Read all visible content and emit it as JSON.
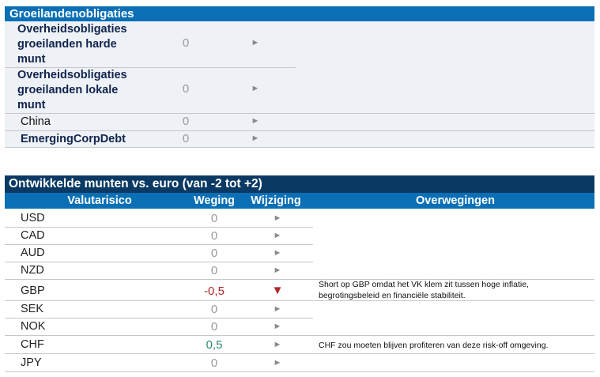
{
  "top": {
    "header": "Groeilandenobligaties",
    "rows": [
      {
        "label_lines": [
          "Overheidsobligaties",
          "groeilanden harde",
          "munt"
        ],
        "value": "0",
        "change": "►"
      },
      {
        "label_lines": [
          "Overheidsobligaties",
          "groeilanden lokale",
          "munt"
        ],
        "value": "0",
        "change": "►"
      },
      {
        "label": "China",
        "value": "0",
        "change": "►"
      },
      {
        "label": "EmergingCorpDebt",
        "value": "0",
        "change": "►"
      }
    ]
  },
  "bottom": {
    "title": "Ontwikkelde munten vs. euro (van -2 tot +2)",
    "headers": {
      "currency": "Valutarisico",
      "weight": "Weging",
      "change": "Wijziging",
      "considerations": "Overwegingen"
    },
    "rows": [
      {
        "currency": "USD",
        "weight": "0",
        "change": "►",
        "note": ""
      },
      {
        "currency": "CAD",
        "weight": "0",
        "change": "►",
        "note": ""
      },
      {
        "currency": "AUD",
        "weight": "0",
        "change": "►",
        "note": ""
      },
      {
        "currency": "NZD",
        "weight": "0",
        "change": "►",
        "note": ""
      },
      {
        "currency": "GBP",
        "weight": "-0,5",
        "change": "▼",
        "note_lines": [
          "Short op GBP omdat het VK klem zit tussen hoge inflatie,",
          "begrotingsbeleid en financiële stabiliteit."
        ]
      },
      {
        "currency": "SEK",
        "weight": "0",
        "change": "►",
        "note": ""
      },
      {
        "currency": "NOK",
        "weight": "0",
        "change": "►",
        "note": ""
      },
      {
        "currency": "CHF",
        "weight": "0,5",
        "change": "►",
        "note": "CHF zou moeten blijven profiteren van deze risk-off omgeving."
      },
      {
        "currency": "JPY",
        "weight": "0",
        "change": "►",
        "note": ""
      }
    ]
  },
  "colors": {
    "header_blue": "#0a6fb5",
    "title_navy": "#0a3a64",
    "negative": "#b02828",
    "positive": "#2a8a70",
    "neutral": "#9a9a9a"
  }
}
